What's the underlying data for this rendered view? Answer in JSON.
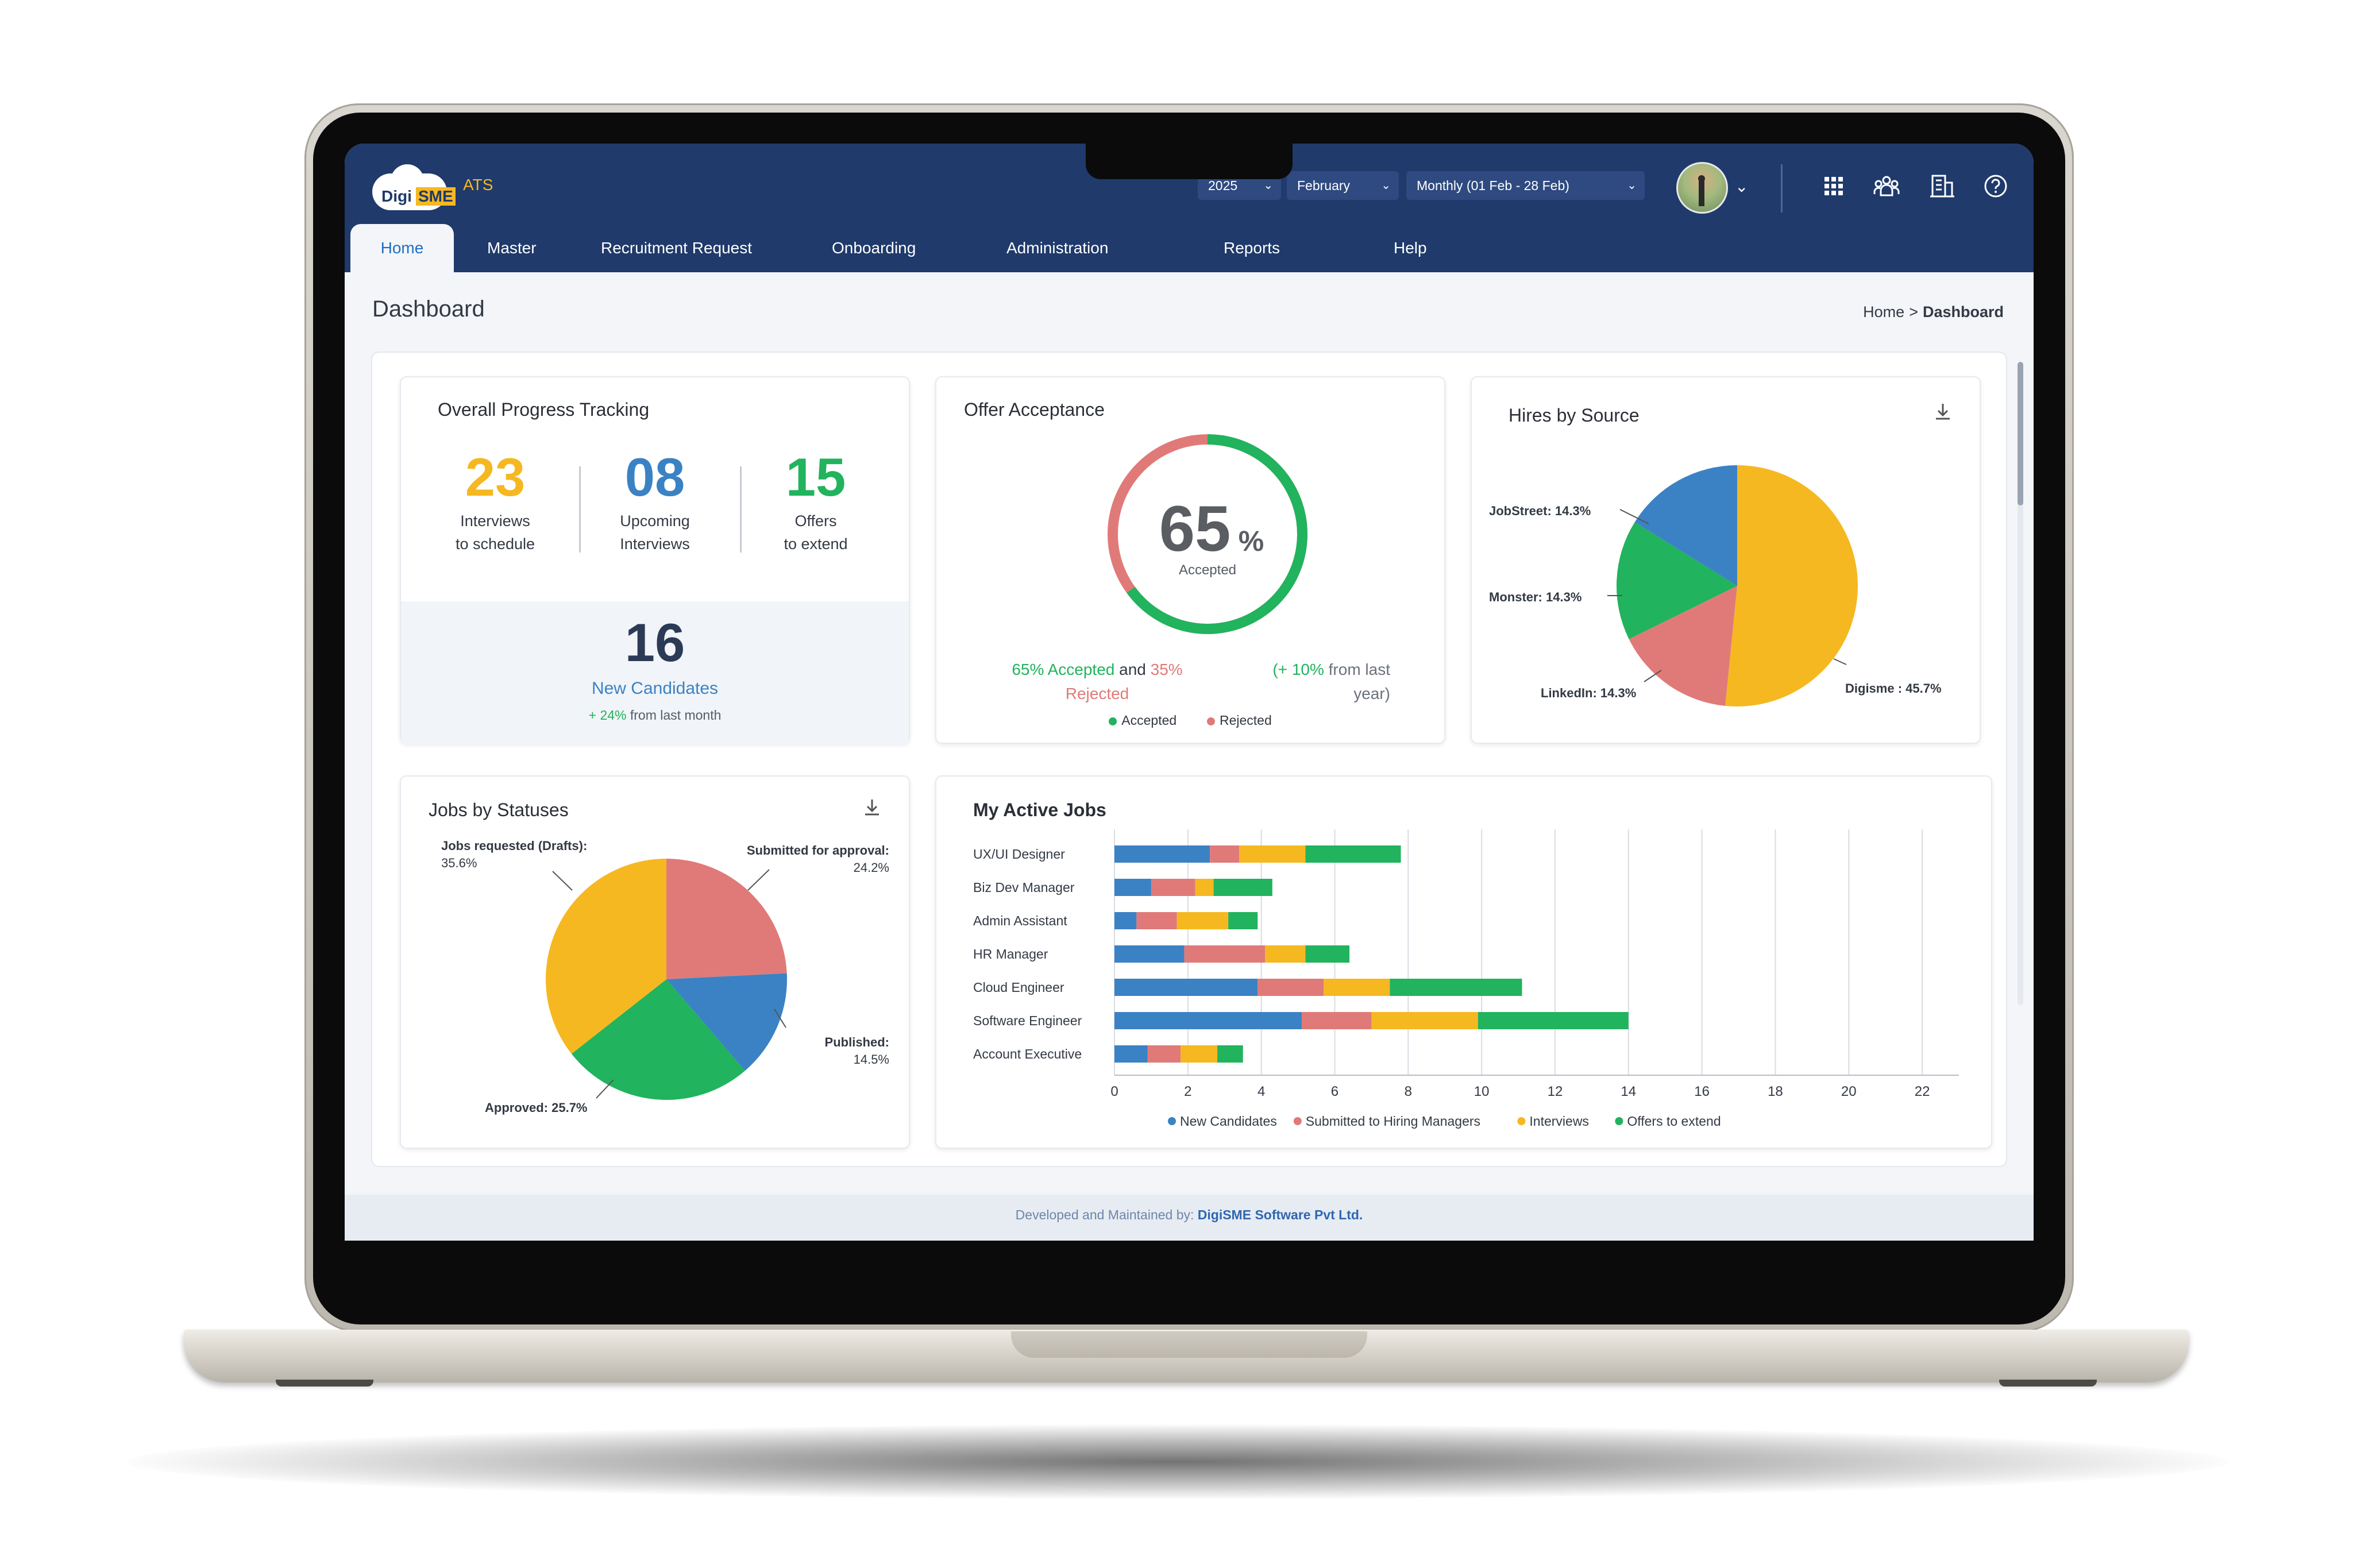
{
  "app": {
    "logo_primary": "Digi",
    "logo_accent": "SME",
    "product": "ATS"
  },
  "filters": {
    "year": "2025",
    "month": "February",
    "period": "Monthly (01 Feb - 28 Feb)"
  },
  "header_icons": [
    "apps-grid-icon",
    "team-icon",
    "building-icon",
    "help-circle-icon"
  ],
  "nav": {
    "tabs": [
      "Home",
      "Master",
      "Recruitment Request",
      "Onboarding",
      "Administration",
      "Reports",
      "Help"
    ],
    "active": "Home"
  },
  "page": {
    "title": "Dashboard",
    "breadcrumb": [
      "Home",
      ">",
      "Dashboard"
    ]
  },
  "progress": {
    "title": "Overall Progress Tracking",
    "stats": [
      {
        "value": "23",
        "label_line1": "Interviews",
        "label_line2": "to schedule",
        "color": "#f6b820"
      },
      {
        "value": "08",
        "label_line1": "Upcoming",
        "label_line2": "Interviews",
        "color": "#3b82c4"
      },
      {
        "value": "15",
        "label_line1": "Offers",
        "label_line2": "to extend",
        "color": "#21b35d"
      }
    ],
    "new_candidates": {
      "value": "16",
      "label": "New Candidates",
      "change": "+ 24%",
      "change_note": "from last month"
    }
  },
  "offer": {
    "title": "Offer Acceptance",
    "percent_value": "65",
    "percent_sign": "%",
    "center_label": "Accepted",
    "accepted_fraction": 0.65,
    "summary_accepted": "65% Accepted",
    "summary_and": "and",
    "summary_rejected_pct": "35%",
    "summary_rejected": "Rejected",
    "change_open": "(+",
    "change_value": "10%",
    "change_text": "from last",
    "change_text2": "year)",
    "legend": [
      "Accepted",
      "Rejected"
    ],
    "colors": {
      "accepted": "#21b35d",
      "rejected": "#e07a78"
    }
  },
  "hires_by_source": {
    "title": "Hires by Source",
    "chart_data": {
      "type": "pie",
      "slices": [
        {
          "label": "Digisme",
          "value": 45.7,
          "display": "Digisme : 45.7%",
          "color": "#f6b820"
        },
        {
          "label": "LinkedIn",
          "value": 14.3,
          "display": "LinkedIn: 14.3%",
          "color": "#e07a78"
        },
        {
          "label": "Monster",
          "value": 14.3,
          "display": "Monster: 14.3%",
          "color": "#21b35d"
        },
        {
          "label": "JobStreet",
          "value": 14.3,
          "display": "JobStreet: 14.3%",
          "color": "#3b82c4"
        }
      ]
    }
  },
  "jobs_by_status": {
    "title": "Jobs by Statuses",
    "chart_data": {
      "type": "pie",
      "slices": [
        {
          "label": "Submitted for approval",
          "value": 24.2,
          "display_line1": "Submitted for approval:",
          "display_line2": "24.2%",
          "color": "#e07a78"
        },
        {
          "label": "Published",
          "value": 14.5,
          "display_line1": "Published:",
          "display_line2": "14.5%",
          "color": "#3b82c4"
        },
        {
          "label": "Approved",
          "value": 25.7,
          "display_line1": "Approved: 25.7%",
          "display_line2": "",
          "color": "#21b35d"
        },
        {
          "label": "Jobs requested (Drafts)",
          "value": 35.6,
          "display_line1": "Jobs requested (Drafts):",
          "display_line2": "35.6%",
          "color": "#f6b820"
        }
      ]
    }
  },
  "active_jobs": {
    "title": "My Active Jobs",
    "chart_data": {
      "type": "bar",
      "orientation": "horizontal",
      "stacked": true,
      "categories": [
        "UX/UI Designer",
        "Biz Dev Manager",
        "Admin Assistant",
        "HR Manager",
        "Cloud Engineer",
        "Software Engineer",
        "Account Executive"
      ],
      "series": [
        {
          "name": "New Candidates",
          "color": "#3b82c4",
          "values": [
            2.6,
            1.0,
            0.6,
            1.9,
            3.9,
            5.1,
            0.9
          ]
        },
        {
          "name": "Submitted to Hiring Managers",
          "color": "#e07a78",
          "values": [
            0.8,
            1.2,
            1.1,
            2.2,
            1.8,
            1.9,
            0.9
          ]
        },
        {
          "name": "Interviews",
          "color": "#f6b820",
          "values": [
            1.8,
            0.5,
            1.4,
            1.1,
            1.8,
            2.9,
            1.0
          ]
        },
        {
          "name": "Offers to extend",
          "color": "#21b35d",
          "values": [
            2.6,
            1.6,
            0.8,
            1.2,
            3.6,
            4.1,
            0.7
          ]
        }
      ],
      "xlim": [
        0,
        23
      ],
      "xticks": [
        "0",
        "2",
        "4",
        "6",
        "8",
        "10",
        "12",
        "14",
        "16",
        "18",
        "20",
        "22"
      ],
      "grid": true,
      "legend_position": "bottom"
    }
  },
  "footer": {
    "text": "Developed and Maintained by:",
    "company": "DigiSME Software Pvt Ltd."
  }
}
